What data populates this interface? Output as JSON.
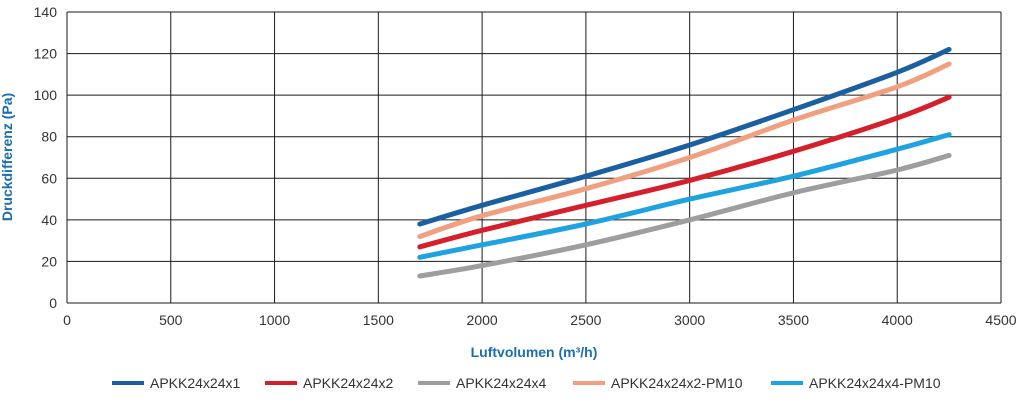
{
  "chart_data": {
    "type": "line",
    "xlabel": "Luftvolumen (m³/h)",
    "ylabel": "Druckdifferenz (Pa)",
    "xlim": [
      0,
      4500
    ],
    "ylim": [
      0,
      140
    ],
    "x_ticks": [
      0,
      500,
      1000,
      1500,
      2000,
      2500,
      3000,
      3500,
      4000,
      4500
    ],
    "y_ticks": [
      0,
      20,
      40,
      60,
      80,
      100,
      120,
      140
    ],
    "grid": true,
    "legend_position": "bottom",
    "series": [
      {
        "name": "APKK24x24x1",
        "color": "#1a5fa0",
        "points": [
          [
            1700,
            38
          ],
          [
            2000,
            47
          ],
          [
            2500,
            61
          ],
          [
            3000,
            76
          ],
          [
            3500,
            93
          ],
          [
            4000,
            111
          ],
          [
            4250,
            122
          ]
        ]
      },
      {
        "name": "APKK24x24x2",
        "color": "#d51f2a",
        "points": [
          [
            1700,
            27
          ],
          [
            2000,
            35
          ],
          [
            2500,
            47
          ],
          [
            3000,
            59
          ],
          [
            3500,
            73
          ],
          [
            4000,
            89
          ],
          [
            4250,
            99
          ]
        ]
      },
      {
        "name": "APKK24x24x4",
        "color": "#9e9e9e",
        "points": [
          [
            1700,
            13
          ],
          [
            2000,
            18
          ],
          [
            2500,
            28
          ],
          [
            3000,
            40
          ],
          [
            3500,
            53
          ],
          [
            4000,
            64
          ],
          [
            4250,
            71
          ]
        ]
      },
      {
        "name": "APKK24x24x2-PM10",
        "color": "#f0a080",
        "points": [
          [
            1700,
            32
          ],
          [
            2000,
            42
          ],
          [
            2500,
            55
          ],
          [
            3000,
            70
          ],
          [
            3500,
            88
          ],
          [
            4000,
            104
          ],
          [
            4250,
            115
          ]
        ]
      },
      {
        "name": "APKK24x24x4-PM10",
        "color": "#1ea3e0",
        "points": [
          [
            1700,
            22
          ],
          [
            2000,
            28
          ],
          [
            2500,
            38
          ],
          [
            3000,
            50
          ],
          [
            3500,
            61
          ],
          [
            4000,
            74
          ],
          [
            4250,
            81
          ]
        ]
      }
    ]
  }
}
